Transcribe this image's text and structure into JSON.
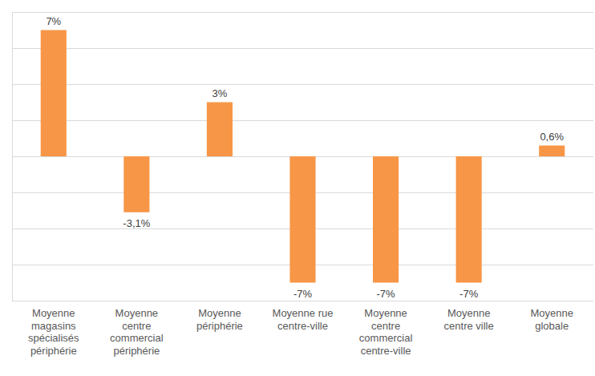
{
  "chart_data": {
    "type": "bar",
    "categories": [
      "Moyenne magasins spécialisés périphérie",
      "Moyenne centre commercial périphérie",
      "Moyenne périphérie",
      "Moyenne rue centre-ville",
      "Moyenne centre commercial centre-ville",
      "Moyenne centre ville",
      "Moyenne globale"
    ],
    "values": [
      7,
      -3.1,
      3,
      -7,
      -7,
      -7,
      0.6
    ],
    "value_labels": [
      "7%",
      "-3,1%",
      "3%",
      "-7%",
      "-7%",
      "-7%",
      "0,6%"
    ],
    "color": "#f79646",
    "ylim": [
      -8,
      8
    ],
    "yticks": [
      -8,
      -6,
      -4,
      -2,
      0,
      2,
      4,
      6,
      8
    ],
    "grid": true,
    "data_labels": true,
    "tick_labels": "x"
  }
}
